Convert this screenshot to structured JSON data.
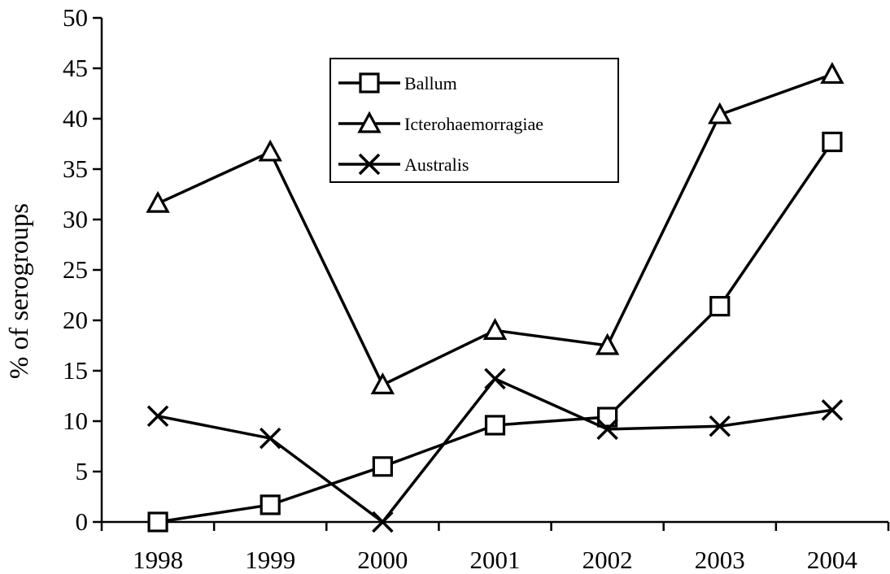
{
  "chart_data": {
    "type": "line",
    "title": "",
    "xlabel": "",
    "ylabel": "% of serogroups",
    "categories": [
      "1998",
      "1999",
      "2000",
      "2001",
      "2002",
      "2003",
      "2004"
    ],
    "ylim": [
      0,
      50
    ],
    "yticks": [
      0,
      5,
      10,
      15,
      20,
      25,
      30,
      35,
      40,
      45,
      50
    ],
    "grid": false,
    "legend_position": "top-center",
    "series": [
      {
        "name": "Ballum",
        "marker": "square",
        "values": [
          0,
          1.7,
          5.5,
          9.6,
          10.4,
          21.4,
          37.7
        ]
      },
      {
        "name": "Icterohaemorragiae",
        "marker": "triangle",
        "values": [
          31.6,
          36.7,
          13.6,
          19.0,
          17.5,
          40.4,
          44.4
        ]
      },
      {
        "name": "Australis",
        "marker": "x",
        "values": [
          10.5,
          8.3,
          0,
          14.2,
          9.2,
          9.5,
          11.1
        ]
      }
    ]
  }
}
